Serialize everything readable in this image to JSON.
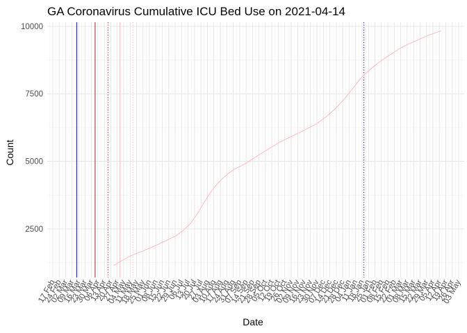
{
  "chart_data": {
    "type": "line",
    "title": "GA Coronavirus Cumulative ICU Bed Use on 2021-04-14",
    "xlabel": "Date",
    "ylabel": "Count",
    "x_range": [
      "2020-02-11",
      "2021-05-09"
    ],
    "ylim": [
      700,
      10150
    ],
    "y_ticks": [
      2500,
      5000,
      7500,
      10000
    ],
    "x_tick_labels": [
      "17 Feb",
      "24 Feb",
      "02 Mar",
      "09 Mar",
      "16 Mar",
      "23 Mar",
      "30 Mar",
      "06 Apr",
      "13 Apr",
      "20 Apr",
      "27 Apr",
      "04 May",
      "11 May",
      "18 May",
      "25 May",
      "01 Jun",
      "08 Jun",
      "15 Jun",
      "22 Jun",
      "29 Jun",
      "06 Jul",
      "13 Jul",
      "20 Jul",
      "27 Jul",
      "03 Aug",
      "10 Aug",
      "17 Aug",
      "24 Aug",
      "31 Aug",
      "07 Sep",
      "14 Sep",
      "21 Sep",
      "28 Sep",
      "05 Oct",
      "12 Oct",
      "19 Oct",
      "26 Oct",
      "02 Nov",
      "09 Nov",
      "16 Nov",
      "23 Nov",
      "30 Nov",
      "07 Dec",
      "14 Dec",
      "21 Dec",
      "28 Dec",
      "04 Jan",
      "11 Jan",
      "18 Jan",
      "25 Jan",
      "01 Feb",
      "08 Feb",
      "15 Feb",
      "22 Feb",
      "01 Mar",
      "08 Mar",
      "15 Mar",
      "22 Mar",
      "29 Mar",
      "05 Apr",
      "12 Apr",
      "19 Apr",
      "26 Apr",
      "03 May"
    ],
    "x_tick_dates": [
      "2020-02-17",
      "2020-02-24",
      "2020-03-02",
      "2020-03-09",
      "2020-03-16",
      "2020-03-23",
      "2020-03-30",
      "2020-04-06",
      "2020-04-13",
      "2020-04-20",
      "2020-04-27",
      "2020-05-04",
      "2020-05-11",
      "2020-05-18",
      "2020-05-25",
      "2020-06-01",
      "2020-06-08",
      "2020-06-15",
      "2020-06-22",
      "2020-06-29",
      "2020-07-06",
      "2020-07-13",
      "2020-07-20",
      "2020-07-27",
      "2020-08-03",
      "2020-08-10",
      "2020-08-17",
      "2020-08-24",
      "2020-08-31",
      "2020-09-07",
      "2020-09-14",
      "2020-09-21",
      "2020-09-28",
      "2020-10-05",
      "2020-10-12",
      "2020-10-19",
      "2020-10-26",
      "2020-11-02",
      "2020-11-09",
      "2020-11-16",
      "2020-11-23",
      "2020-11-30",
      "2020-12-07",
      "2020-12-14",
      "2020-12-21",
      "2020-12-28",
      "2021-01-04",
      "2021-01-11",
      "2021-01-18",
      "2021-01-25",
      "2021-02-01",
      "2021-02-08",
      "2021-02-15",
      "2021-02-22",
      "2021-03-01",
      "2021-03-08",
      "2021-03-15",
      "2021-03-22",
      "2021-03-29",
      "2021-04-05",
      "2021-04-12",
      "2021-04-19",
      "2021-04-26",
      "2021-05-03"
    ],
    "grid": true,
    "series": [
      {
        "color": "#ffb6c1",
        "points": [
          {
            "x": "2020-04-23",
            "y": 1150
          },
          {
            "x": "2020-05-01",
            "y": 1300
          },
          {
            "x": "2020-05-10",
            "y": 1480
          },
          {
            "x": "2020-05-20",
            "y": 1620
          },
          {
            "x": "2020-06-01",
            "y": 1780
          },
          {
            "x": "2020-06-10",
            "y": 1920
          },
          {
            "x": "2020-06-20",
            "y": 2080
          },
          {
            "x": "2020-06-30",
            "y": 2250
          },
          {
            "x": "2020-07-08",
            "y": 2450
          },
          {
            "x": "2020-07-15",
            "y": 2680
          },
          {
            "x": "2020-07-22",
            "y": 3000
          },
          {
            "x": "2020-07-29",
            "y": 3400
          },
          {
            "x": "2020-08-05",
            "y": 3780
          },
          {
            "x": "2020-08-12",
            "y": 4100
          },
          {
            "x": "2020-08-19",
            "y": 4350
          },
          {
            "x": "2020-08-26",
            "y": 4560
          },
          {
            "x": "2020-09-02",
            "y": 4720
          },
          {
            "x": "2020-09-14",
            "y": 4930
          },
          {
            "x": "2020-09-26",
            "y": 5200
          },
          {
            "x": "2020-10-08",
            "y": 5450
          },
          {
            "x": "2020-10-20",
            "y": 5700
          },
          {
            "x": "2020-11-01",
            "y": 5900
          },
          {
            "x": "2020-11-15",
            "y": 6130
          },
          {
            "x": "2020-11-29",
            "y": 6380
          },
          {
            "x": "2020-12-10",
            "y": 6650
          },
          {
            "x": "2020-12-20",
            "y": 6950
          },
          {
            "x": "2020-12-30",
            "y": 7320
          },
          {
            "x": "2021-01-08",
            "y": 7700
          },
          {
            "x": "2021-01-16",
            "y": 8050
          },
          {
            "x": "2021-01-24",
            "y": 8320
          },
          {
            "x": "2021-02-01",
            "y": 8550
          },
          {
            "x": "2021-02-10",
            "y": 8780
          },
          {
            "x": "2021-02-20",
            "y": 9000
          },
          {
            "x": "2021-03-01",
            "y": 9200
          },
          {
            "x": "2021-03-10",
            "y": 9350
          },
          {
            "x": "2021-03-20",
            "y": 9500
          },
          {
            "x": "2021-03-30",
            "y": 9650
          },
          {
            "x": "2021-04-07",
            "y": 9750
          },
          {
            "x": "2021-04-14",
            "y": 9830
          }
        ]
      }
    ],
    "vlines": [
      {
        "x": "2020-03-14",
        "color": "#0000ff",
        "style": "solid"
      },
      {
        "x": "2020-04-03",
        "color": "#b22222",
        "style": "solid"
      },
      {
        "x": "2020-04-17",
        "color": "#b22222",
        "style": "dotted"
      },
      {
        "x": "2020-04-30",
        "color": "#ffb6c1",
        "style": "solid"
      },
      {
        "x": "2020-05-14",
        "color": "#ffb6c1",
        "style": "dotted"
      },
      {
        "x": "2021-01-20",
        "color": "#00008b",
        "style": "dotted"
      }
    ]
  }
}
